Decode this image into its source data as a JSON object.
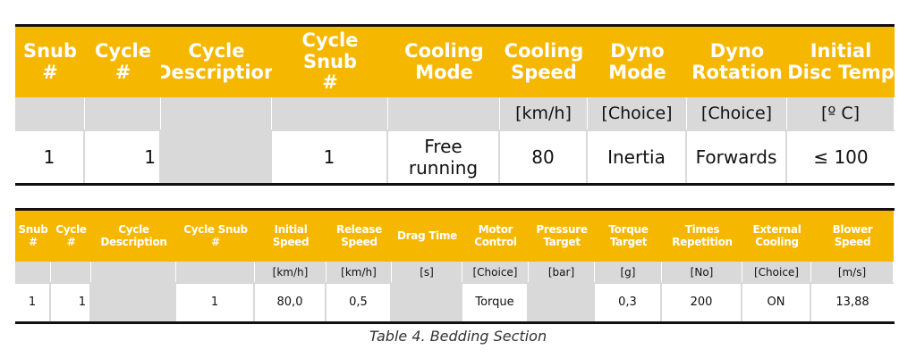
{
  "table1": {
    "headers": [
      "Snub\n#",
      "Cycle\n#",
      "Cycle\nDescription",
      "Cycle Snub\n#",
      "Cooling\nMode",
      "Cooling\nSpeed",
      "Dyno\nMode",
      "Dyno\nRotation",
      "Initial\nDisc Temp"
    ],
    "units": [
      "",
      "",
      "",
      "",
      "",
      "[km/h]",
      "[Choice]",
      "[Choice]",
      "[º C]"
    ],
    "values": [
      "1",
      "1",
      "",
      "1",
      "Free\nrunning",
      "80",
      "Inertia",
      "Forwards",
      "≤ 100"
    ]
  },
  "table2": {
    "headers": [
      "Snub\n#",
      "Cycle\n#",
      "Cycle\nDescription",
      "Cycle Snub\n#",
      "Initial\nSpeed",
      "Release\nSpeed",
      "Drag Time",
      "Motor\nControl",
      "Pressure\nTarget",
      "Torque\nTarget",
      "Times\nRepetition",
      "External\nCooling",
      "Blower\nSpeed"
    ],
    "units": [
      "",
      "",
      "",
      "",
      "[km/h]",
      "[km/h]",
      "[s]",
      "[Choice]",
      "[bar]",
      "[g]",
      "[No]",
      "[Choice]",
      "[m/s]"
    ],
    "values": [
      "1",
      "1",
      "",
      "1",
      "80,0",
      "0,5",
      "",
      "Torque",
      "",
      "0,3",
      "200",
      "ON",
      "13,88"
    ]
  },
  "caption": "Table 4. Bedding Section"
}
